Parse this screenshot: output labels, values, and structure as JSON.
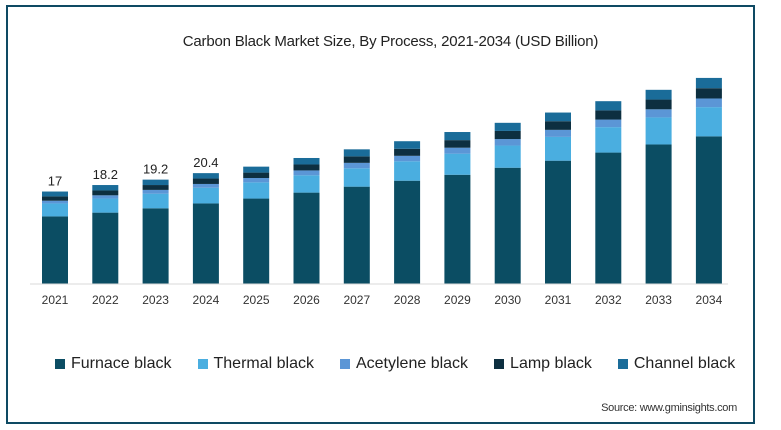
{
  "chart_data": {
    "type": "bar",
    "stacked": true,
    "title": "Carbon Black Market Size, By Process, 2021-2034 (USD Billion)",
    "xlabel": "",
    "ylabel": "",
    "ylim": [
      0,
      40
    ],
    "grid": false,
    "legend_position": "bottom",
    "categories": [
      "2021",
      "2022",
      "2023",
      "2024",
      "2025",
      "2026",
      "2027",
      "2028",
      "2029",
      "2030",
      "2031",
      "2032",
      "2033",
      "2034"
    ],
    "series": [
      {
        "name": "Furnace black",
        "color": "#0b4d63",
        "values": [
          12.4,
          13.1,
          13.9,
          14.8,
          15.7,
          16.8,
          17.9,
          19.0,
          20.1,
          21.4,
          22.7,
          24.2,
          25.7,
          27.2
        ]
      },
      {
        "name": "Thermal black",
        "color": "#4aaee0",
        "values": [
          2.4,
          2.6,
          2.7,
          2.9,
          3.0,
          3.2,
          3.4,
          3.6,
          3.9,
          4.1,
          4.4,
          4.7,
          5.0,
          5.4
        ]
      },
      {
        "name": "Acetylene black",
        "color": "#5b96d6",
        "values": [
          0.5,
          0.6,
          0.7,
          0.7,
          0.8,
          0.9,
          1.0,
          1.0,
          1.1,
          1.2,
          1.3,
          1.4,
          1.5,
          1.6
        ]
      },
      {
        "name": "Lamp black",
        "color": "#0d2f40",
        "values": [
          0.8,
          0.9,
          0.9,
          1.0,
          1.0,
          1.1,
          1.2,
          1.3,
          1.4,
          1.5,
          1.6,
          1.7,
          1.8,
          1.9
        ]
      },
      {
        "name": "Channel black",
        "color": "#1a6c99",
        "values": [
          0.9,
          1.0,
          1.0,
          1.0,
          1.1,
          1.2,
          1.3,
          1.4,
          1.5,
          1.5,
          1.6,
          1.7,
          1.8,
          1.9
        ]
      }
    ],
    "totals_labels": [
      {
        "category": "2021",
        "text": "17"
      },
      {
        "category": "2022",
        "text": "18.2"
      },
      {
        "category": "2023",
        "text": "19.2"
      },
      {
        "category": "2024",
        "text": "20.4"
      }
    ]
  },
  "source_text": "Source: www.gminsights.com",
  "colors": {
    "frame_border": "#0e4a63",
    "axis_line": "#d9d9d9",
    "text": "#222222"
  }
}
